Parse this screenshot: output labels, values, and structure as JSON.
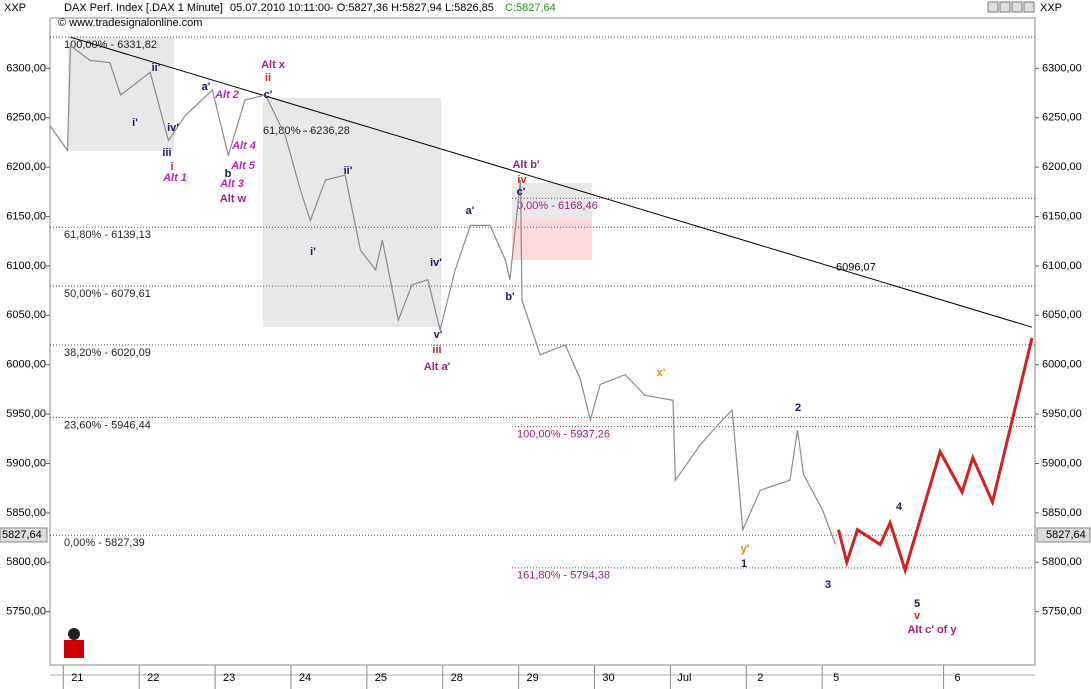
{
  "header": {
    "symbol_left": "XXP",
    "symbol_right": "XXP",
    "title": "DAX Perf. Index [.DAX 1 Minute]",
    "datetime": "05.07.2010 10:11:00",
    "ohlc": "- O:5827,36 H:5827,94 L:5826,85",
    "close": "C:5827,64",
    "copyright": "© www.tradesignalonline.com"
  },
  "chart_data": {
    "type": "line",
    "xlim": [
      -0.36,
      12.62
    ],
    "ylim": [
      5696,
      6351
    ],
    "xticks": [
      {
        "value": 0,
        "label": "21"
      },
      {
        "value": 1,
        "label": "22"
      },
      {
        "value": 2,
        "label": "23"
      },
      {
        "value": 3,
        "label": "24"
      },
      {
        "value": 4,
        "label": "25"
      },
      {
        "value": 5,
        "label": "28"
      },
      {
        "value": 6,
        "label": "29"
      },
      {
        "value": 7,
        "label": "30"
      },
      {
        "value": 8,
        "label": "Jul"
      },
      {
        "value": 9,
        "label": "2"
      },
      {
        "value": 10,
        "label": "5"
      },
      {
        "value": 11.6,
        "label": "6"
      }
    ],
    "yticks": [
      {
        "value": 5750,
        "label": "5750,00"
      },
      {
        "value": 5800,
        "label": "5800,00"
      },
      {
        "value": 5850,
        "label": "5850,00"
      },
      {
        "value": 5900,
        "label": "5900,00"
      },
      {
        "value": 5950,
        "label": "5950,00"
      },
      {
        "value": 6000,
        "label": "6000,00"
      },
      {
        "value": 6050,
        "label": "6050,00"
      },
      {
        "value": 6100,
        "label": "6100,00"
      },
      {
        "value": 6150,
        "label": "6150,00"
      },
      {
        "value": 6200,
        "label": "6200,00"
      },
      {
        "value": 6250,
        "label": "6250,00"
      },
      {
        "value": 6300,
        "label": "6300,00"
      }
    ],
    "series": [
      {
        "color": "#8a8a8a",
        "x": [
          -0.36,
          -0.13,
          -0.09,
          0.17,
          0.43,
          0.57,
          0.96,
          1.2,
          1.42,
          1.78,
          1.99,
          2.21,
          2.48,
          2.74,
          2.94,
          3.07,
          3.27,
          3.53,
          3.73,
          3.93,
          4.02,
          4.23,
          4.41,
          4.62,
          4.78,
          4.98,
          5.18,
          5.44,
          5.64,
          5.7,
          5.84,
          5.86,
          6.1,
          6.43,
          6.63,
          6.76,
          6.89,
          7.22,
          7.48,
          7.85,
          7.88,
          8.21,
          8.5,
          8.63,
          8.77,
          9,
          9.39,
          9.49,
          9.57,
          9.82,
          9.99
        ],
        "values": [
          6242,
          6217,
          6323,
          6308,
          6306,
          6273,
          6296,
          6227,
          6252,
          6278,
          6212,
          6268,
          6273,
          6232,
          6177,
          6146,
          6187,
          6192,
          6116,
          6096,
          6126,
          6045,
          6081,
          6086,
          6035,
          6096,
          6141,
          6141,
          6106,
          6086,
          6187,
          6065,
          6010,
          6020,
          5985,
          5944,
          5980,
          5990,
          5969,
          5964,
          5883,
          5919,
          5944,
          5954,
          5833,
          5873,
          5883,
          5934,
          5889,
          5853,
          5818
        ]
      },
      {
        "color": "#d42020",
        "x": [
          10.03,
          10.14,
          10.28,
          10.58,
          10.71,
          10.91,
          11.37,
          11.66,
          11.8,
          12.06,
          12.58
        ],
        "values": [
          5833,
          5800,
          5833,
          5818,
          5840,
          5792,
          5912,
          5871,
          5906,
          5861,
          6027
        ]
      }
    ],
    "trendline": {
      "x": [
        -0.09,
        12.58
      ],
      "values": [
        6331.6,
        6038
      ],
      "color": "#000000",
      "value": 6096.07,
      "label": "6096,07"
    },
    "last_price": {
      "value": 5827.64,
      "label": "5827,64"
    },
    "retracement_levels": [
      {
        "value": 6331.82,
        "label": "100,00% - 6331,82"
      },
      {
        "value": 6139.13,
        "label": "61,80% - 6139,13"
      },
      {
        "value": 6079.61,
        "label": "50,00% - 6079,61"
      },
      {
        "value": 6020.09,
        "label": "38,20% - 6020,09"
      },
      {
        "value": 5946.44,
        "label": "23,60% - 5946,44"
      },
      {
        "value": 5827.39,
        "label": "0,00% - 5827,39"
      }
    ],
    "extension_levels": [
      {
        "value": 6168.46,
        "label": "0,00% - 6168,46"
      },
      {
        "value": 5937.26,
        "label": "100,00% - 5937,26"
      },
      {
        "value": 5794.38,
        "label": "161,80% - 5794,38"
      }
    ],
    "inner_level": {
      "value": 6236.28,
      "label": "61,80% - 6236,28"
    },
    "annotations": [
      {
        "text": "Alt x",
        "color": "#a0208a"
      },
      {
        "text": "ii",
        "color": "#d42020"
      },
      {
        "text": "Alt w",
        "color": "#a0208a"
      },
      {
        "text": "Alt b'",
        "color": "#a0208a"
      },
      {
        "text": "iv",
        "color": "#d42020"
      },
      {
        "text": "c'",
        "color": "#1a1a60"
      },
      {
        "text": "Alt a'",
        "color": "#a0208a"
      },
      {
        "text": "iii",
        "color": "#d42020"
      },
      {
        "text": "v'",
        "color": "#1a1a60"
      },
      {
        "text": "b'",
        "color": "#1a1a60"
      },
      {
        "text": "a'",
        "color": "#1a1a60"
      },
      {
        "text": "iv'",
        "color": "#1a1a60"
      },
      {
        "text": "ii'",
        "color": "#1a1a60"
      },
      {
        "text": "i'",
        "color": "#1a1a60"
      },
      {
        "text": "a'",
        "color": "#1a1a60"
      },
      {
        "text": "b",
        "color": "#1a1a60"
      },
      {
        "text": "c'",
        "color": "#1a1a60"
      },
      {
        "text": "Alt 1",
        "color": "#c020c0"
      },
      {
        "text": "Alt 2",
        "color": "#c020c0"
      },
      {
        "text": "Alt 3",
        "color": "#c020c0"
      },
      {
        "text": "Alt 4",
        "color": "#c020c0"
      },
      {
        "text": "Alt 5",
        "color": "#c020c0"
      },
      {
        "text": "i",
        "color": "#d42020"
      },
      {
        "text": "iii",
        "color": "#1a1a60"
      },
      {
        "text": "iv'",
        "color": "#1a1a60"
      },
      {
        "text": "i'",
        "color": "#1a1a60"
      },
      {
        "text": "ii'",
        "color": "#1a1a60"
      },
      {
        "text": "x'",
        "color": "#e08a10"
      },
      {
        "text": "y'",
        "color": "#e08a10"
      },
      {
        "text": "1",
        "color": "#1a1a60"
      },
      {
        "text": "2",
        "color": "#1a1a60"
      },
      {
        "text": "3",
        "color": "#1a1a60"
      },
      {
        "text": "4",
        "color": "#1a1a60"
      },
      {
        "text": "5",
        "color": "#1a1a60"
      },
      {
        "text": "v",
        "color": "#d42020"
      },
      {
        "text": "Alt c' of y",
        "color": "#a0208a"
      }
    ]
  }
}
